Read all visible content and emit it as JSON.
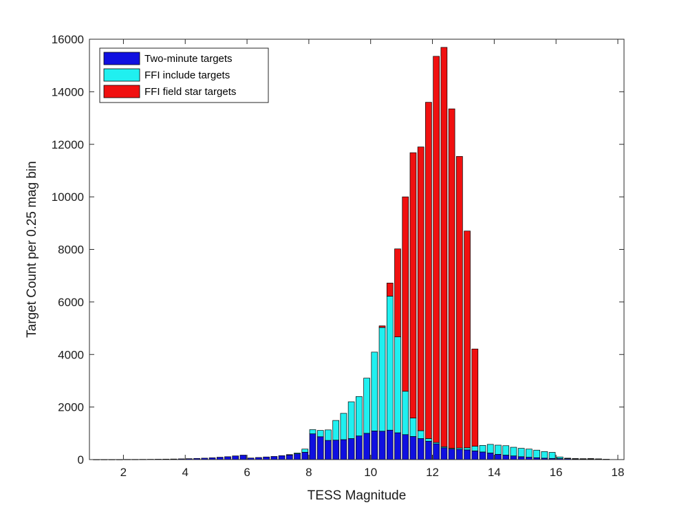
{
  "chart_data": {
    "type": "bar",
    "stacked": true,
    "title": "",
    "xlabel": "TESS Magnitude",
    "ylabel": "Target Count per 0.25 mag bin",
    "xlim": [
      0.9,
      18.2
    ],
    "ylim": [
      0,
      16000
    ],
    "x_ticks": [
      "2",
      "4",
      "6",
      "8",
      "10",
      "12",
      "14",
      "16",
      "18"
    ],
    "y_ticks": [
      "0",
      "2000",
      "4000",
      "6000",
      "8000",
      "10000",
      "12000",
      "14000",
      "16000"
    ],
    "grid": false,
    "legend_position": "top-left",
    "bin_width": 0.25,
    "x": [
      1.125,
      1.375,
      1.625,
      1.875,
      2.125,
      2.375,
      2.625,
      2.875,
      3.125,
      3.375,
      3.625,
      3.875,
      4.125,
      4.375,
      4.625,
      4.875,
      5.125,
      5.375,
      5.625,
      5.875,
      6.125,
      6.375,
      6.625,
      6.875,
      7.125,
      7.375,
      7.625,
      7.875,
      8.125,
      8.375,
      8.625,
      8.875,
      9.125,
      9.375,
      9.625,
      9.875,
      10.125,
      10.375,
      10.625,
      10.875,
      11.125,
      11.375,
      11.625,
      11.875,
      12.125,
      12.375,
      12.625,
      12.875,
      13.125,
      13.375,
      13.625,
      13.875,
      14.125,
      14.375,
      14.625,
      14.875,
      15.125,
      15.375,
      15.625,
      15.875,
      16.125,
      16.375,
      16.625,
      16.875,
      17.125,
      17.375,
      17.625
    ],
    "series": [
      {
        "name": "Two-minute targets",
        "color": "#1010e0",
        "values": [
          5,
          5,
          5,
          5,
          8,
          8,
          10,
          12,
          15,
          18,
          22,
          28,
          35,
          45,
          55,
          70,
          90,
          110,
          140,
          170,
          60,
          80,
          100,
          120,
          150,
          180,
          220,
          280,
          980,
          870,
          730,
          740,
          760,
          800,
          900,
          1000,
          1090,
          1080,
          1120,
          1020,
          950,
          880,
          800,
          700,
          600,
          450,
          400,
          390,
          370,
          330,
          290,
          250,
          200,
          170,
          140,
          110,
          90,
          70,
          55,
          45,
          40,
          35,
          30,
          30,
          35,
          25,
          10
        ]
      },
      {
        "name": "FFI include targets",
        "color": "#20f0f0",
        "values": [
          0,
          0,
          0,
          0,
          0,
          0,
          0,
          0,
          0,
          0,
          0,
          0,
          0,
          0,
          0,
          0,
          0,
          0,
          0,
          0,
          0,
          0,
          0,
          0,
          0,
          10,
          30,
          120,
          160,
          240,
          400,
          750,
          1000,
          1400,
          1500,
          2100,
          3000,
          3950,
          5100,
          3650,
          1650,
          700,
          300,
          100,
          50,
          40,
          30,
          50,
          80,
          180,
          250,
          330,
          350,
          360,
          330,
          320,
          310,
          290,
          250,
          230,
          60,
          20,
          10,
          5,
          3,
          2,
          2
        ]
      },
      {
        "name": "FFI field star targets",
        "color": "#f01010",
        "values": [
          0,
          0,
          0,
          0,
          0,
          0,
          0,
          0,
          0,
          0,
          0,
          0,
          0,
          0,
          0,
          0,
          0,
          0,
          0,
          0,
          0,
          0,
          0,
          0,
          0,
          0,
          0,
          0,
          0,
          0,
          0,
          0,
          0,
          0,
          0,
          0,
          0,
          60,
          500,
          3350,
          7400,
          10100,
          10800,
          12800,
          14700,
          15200,
          12920,
          11100,
          8250,
          3700,
          0,
          0,
          0,
          0,
          0,
          0,
          0,
          0,
          0,
          0,
          0,
          0,
          0,
          0,
          0,
          0,
          0
        ]
      }
    ]
  }
}
